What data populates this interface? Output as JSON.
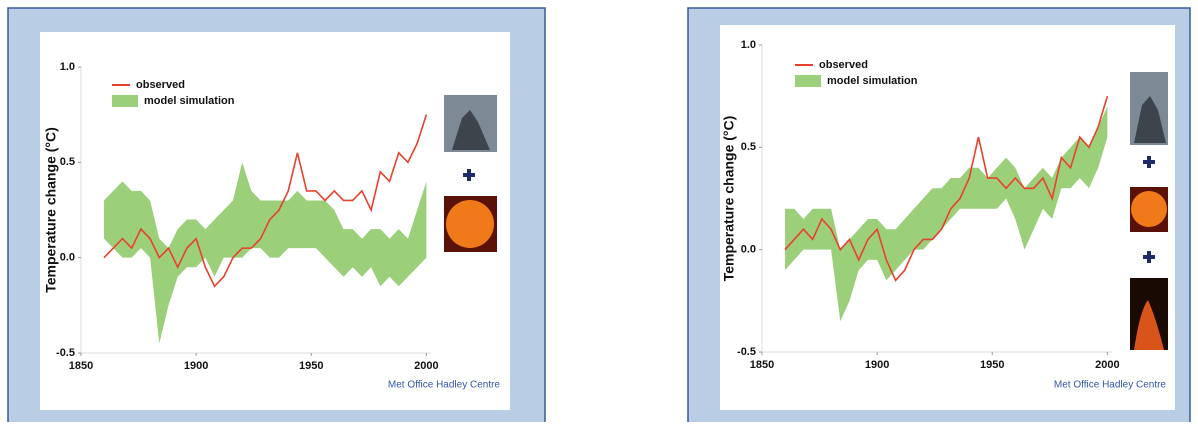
{
  "chart_data": [
    {
      "type": "band-line",
      "y_label": "Temperature change (°C)",
      "source": "Met Office Hadley Centre",
      "x": [
        1860,
        1864,
        1868,
        1872,
        1876,
        1880,
        1884,
        1888,
        1892,
        1896,
        1900,
        1904,
        1908,
        1912,
        1916,
        1920,
        1924,
        1928,
        1932,
        1936,
        1940,
        1944,
        1948,
        1952,
        1956,
        1960,
        1964,
        1968,
        1972,
        1976,
        1980,
        1984,
        1988,
        1992,
        1996,
        2000
      ],
      "series": [
        {
          "name": "observed",
          "color": "#e8412c",
          "values": [
            0.0,
            0.05,
            0.1,
            0.05,
            0.15,
            0.1,
            0.0,
            0.05,
            -0.05,
            0.05,
            0.1,
            -0.05,
            -0.15,
            -0.1,
            0.0,
            0.05,
            0.05,
            0.1,
            0.2,
            0.25,
            0.35,
            0.55,
            0.35,
            0.35,
            0.3,
            0.35,
            0.3,
            0.3,
            0.35,
            0.25,
            0.45,
            0.4,
            0.55,
            0.5,
            0.6,
            0.75
          ]
        },
        {
          "name": "model simulation",
          "color": "#9ccf7a",
          "lower": [
            0.1,
            0.05,
            0.0,
            0.0,
            0.05,
            0.0,
            -0.45,
            -0.25,
            -0.1,
            -0.05,
            -0.05,
            0.0,
            -0.1,
            0.0,
            0.0,
            0.0,
            0.05,
            0.05,
            0.0,
            0.0,
            0.05,
            0.05,
            0.05,
            0.05,
            0.0,
            -0.05,
            -0.1,
            -0.05,
            -0.1,
            -0.05,
            -0.15,
            -0.1,
            -0.15,
            -0.1,
            -0.05,
            0.0
          ],
          "upper": [
            0.3,
            0.35,
            0.4,
            0.35,
            0.35,
            0.3,
            0.1,
            0.05,
            0.15,
            0.2,
            0.2,
            0.15,
            0.2,
            0.25,
            0.3,
            0.5,
            0.35,
            0.3,
            0.3,
            0.3,
            0.3,
            0.35,
            0.3,
            0.3,
            0.3,
            0.25,
            0.15,
            0.15,
            0.1,
            0.15,
            0.15,
            0.1,
            0.15,
            0.1,
            0.25,
            0.4
          ]
        }
      ],
      "xlim": [
        1850,
        2002
      ],
      "xticks": [
        1850,
        1900,
        1950,
        2000
      ],
      "ylim": [
        -0.5,
        1.0
      ],
      "yticks": [
        {
          "value": -0.5,
          "label": "-0.5"
        },
        {
          "value": 0,
          "label": "0.0"
        },
        {
          "value": 0.5,
          "label": "0.5"
        },
        {
          "value": 1,
          "label": "1.0"
        }
      ]
    },
    {
      "type": "band-line",
      "y_label": "Temperature change (°C)",
      "source": "Met Office Hadley Centre",
      "x": [
        1860,
        1864,
        1868,
        1872,
        1876,
        1880,
        1884,
        1888,
        1892,
        1896,
        1900,
        1904,
        1908,
        1912,
        1916,
        1920,
        1924,
        1928,
        1932,
        1936,
        1940,
        1944,
        1948,
        1952,
        1956,
        1960,
        1964,
        1968,
        1972,
        1976,
        1980,
        1984,
        1988,
        1992,
        1996,
        2000
      ],
      "series": [
        {
          "name": "observed",
          "color": "#e8412c",
          "values": [
            0.0,
            0.05,
            0.1,
            0.05,
            0.15,
            0.1,
            0.0,
            0.05,
            -0.05,
            0.05,
            0.1,
            -0.05,
            -0.15,
            -0.1,
            0.0,
            0.05,
            0.05,
            0.1,
            0.2,
            0.25,
            0.35,
            0.55,
            0.35,
            0.35,
            0.3,
            0.35,
            0.3,
            0.3,
            0.35,
            0.25,
            0.45,
            0.4,
            0.55,
            0.5,
            0.6,
            0.75
          ]
        },
        {
          "name": "model simulation",
          "color": "#9ccf7a",
          "lower": [
            -0.1,
            -0.05,
            0.0,
            0.0,
            0.0,
            0.0,
            -0.35,
            -0.25,
            -0.1,
            -0.05,
            -0.05,
            -0.15,
            -0.1,
            -0.05,
            0.0,
            0.0,
            0.05,
            0.1,
            0.15,
            0.2,
            0.2,
            0.2,
            0.2,
            0.2,
            0.25,
            0.15,
            0.0,
            0.1,
            0.2,
            0.15,
            0.3,
            0.3,
            0.35,
            0.3,
            0.4,
            0.55
          ],
          "upper": [
            0.2,
            0.2,
            0.15,
            0.2,
            0.2,
            0.2,
            0.0,
            0.05,
            0.1,
            0.15,
            0.15,
            0.1,
            0.1,
            0.15,
            0.2,
            0.25,
            0.3,
            0.3,
            0.35,
            0.35,
            0.4,
            0.4,
            0.35,
            0.4,
            0.45,
            0.4,
            0.3,
            0.35,
            0.4,
            0.35,
            0.45,
            0.5,
            0.55,
            0.5,
            0.6,
            0.7
          ]
        }
      ],
      "xlim": [
        1850,
        2002
      ],
      "xticks": [
        1850,
        1900,
        1950,
        2000
      ],
      "ylim": [
        -0.5,
        1.0
      ],
      "yticks": [
        {
          "value": -0.5,
          "label": "-0.5"
        },
        {
          "value": 0,
          "label": "0.0"
        },
        {
          "value": 0.5,
          "label": "0.5"
        },
        {
          "value": 1,
          "label": "1.0"
        }
      ]
    }
  ]
}
